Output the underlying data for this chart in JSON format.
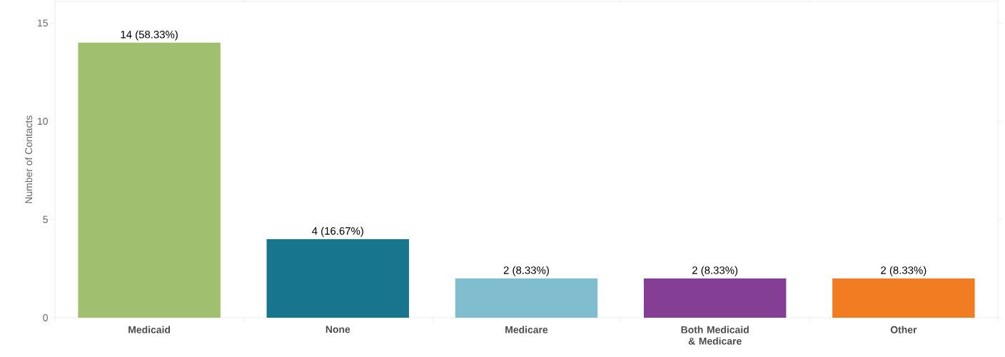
{
  "chart_data": {
    "type": "bar",
    "ylabel": "Number of Contacts",
    "categories": [
      "Medicaid",
      "None",
      "Medicare",
      "Both Medicaid & Medicare",
      "Other"
    ],
    "values": [
      14,
      4,
      2,
      2,
      2
    ],
    "colors": [
      "#a0bf6f",
      "#17758e",
      "#80bdcf",
      "#843f95",
      "#f27c22"
    ],
    "value_labels": [
      "14 (58.33%)",
      "4 (16.67%)",
      "2 (8.33%)",
      "2 (8.33%)",
      "2 (8.33%)"
    ],
    "ylim": [
      0,
      16.1
    ],
    "yticks": [
      0,
      5,
      10,
      15
    ],
    "grid": false
  }
}
